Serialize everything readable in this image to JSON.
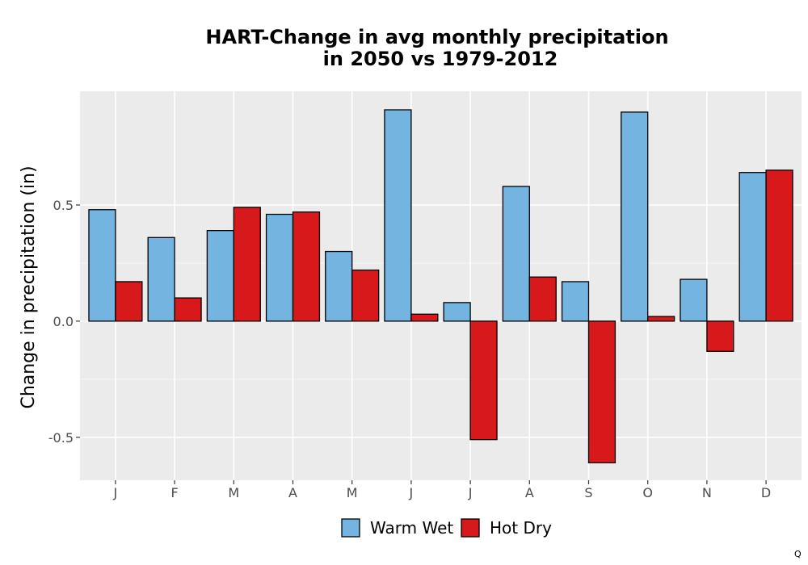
{
  "chart_data": {
    "type": "bar",
    "title_line1": "HART-Change in avg monthly precipitation",
    "title_line2": "in 2050 vs 1979-2012",
    "xlabel": "",
    "ylabel": "Change in precipitation (in)",
    "categories": [
      "J",
      "F",
      "M",
      "A",
      "M",
      "J",
      "J",
      "A",
      "S",
      "O",
      "N",
      "D"
    ],
    "series": [
      {
        "name": "Warm Wet",
        "color": "#74b4e0",
        "values": [
          0.48,
          0.36,
          0.39,
          0.46,
          0.3,
          0.91,
          0.08,
          0.58,
          0.17,
          0.9,
          0.18,
          0.64
        ]
      },
      {
        "name": "Hot Dry",
        "color": "#d7191c",
        "values": [
          0.17,
          0.1,
          0.49,
          0.47,
          0.22,
          0.03,
          -0.51,
          0.19,
          -0.61,
          0.02,
          -0.13,
          0.65
        ]
      }
    ],
    "yticks": [
      -0.5,
      0.0,
      0.5
    ],
    "ytick_labels": [
      "-0.5",
      "0.0",
      "0.5"
    ],
    "ylim": [
      -0.685,
      0.99
    ],
    "grid": true,
    "legend_position": "bottom",
    "corner_mark": "Q"
  }
}
